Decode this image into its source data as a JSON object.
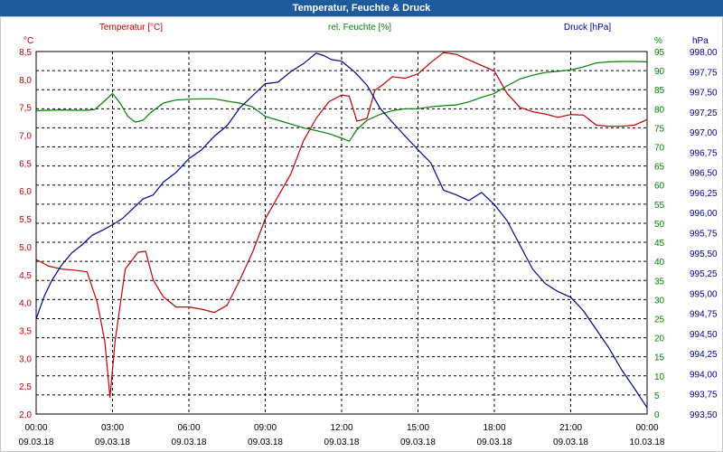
{
  "window": {
    "title": "Temperatur, Feuchte & Druck"
  },
  "colors": {
    "temperature": "#c00000",
    "humidity": "#008000",
    "pressure": "#000099",
    "title_bar": "#1e5b9c",
    "grid": "#000000"
  },
  "chart_data": {
    "type": "line",
    "title": "Temperatur, Feuchte & Druck",
    "grid": true,
    "x": {
      "ticks": [
        {
          "time": "00:00",
          "date": "09.03.18"
        },
        {
          "time": "03:00",
          "date": "09.03.18"
        },
        {
          "time": "06:00",
          "date": "09.03.18"
        },
        {
          "time": "09:00",
          "date": "09.03.18"
        },
        {
          "time": "12:00",
          "date": "09.03.18"
        },
        {
          "time": "15:00",
          "date": "09.03.18"
        },
        {
          "time": "18:00",
          "date": "09.03.18"
        },
        {
          "time": "21:00",
          "date": "09.03.18"
        },
        {
          "time": "00:00",
          "date": "10.03.18"
        }
      ],
      "range_hours": [
        0,
        24
      ]
    },
    "axes": {
      "temperature": {
        "unit": "°C",
        "legend": "Temperatur [°C]",
        "ylim": [
          2.0,
          8.5
        ],
        "ticks": [
          "8,5",
          "8,0",
          "7,5",
          "7,0",
          "6,5",
          "6,0",
          "5,5",
          "5,0",
          "4,5",
          "4,0",
          "3,5",
          "3,0",
          "2,5",
          "2,0"
        ]
      },
      "humidity": {
        "unit": "%",
        "legend": "rel. Feuchte [%]",
        "ylim": [
          0,
          95
        ],
        "ticks": [
          "95",
          "90",
          "85",
          "80",
          "75",
          "70",
          "65",
          "60",
          "55",
          "50",
          "45",
          "40",
          "35",
          "30",
          "25",
          "20",
          "15",
          "10",
          "5",
          "0"
        ]
      },
      "pressure": {
        "unit": "hPa",
        "legend": "Druck [hPa]",
        "ylim": [
          993.5,
          998.0
        ],
        "ticks": [
          "998,00",
          "997,75",
          "997,50",
          "997,25",
          "997,00",
          "996,75",
          "996,50",
          "996,25",
          "996,00",
          "995,75",
          "995,50",
          "995,25",
          "995,00",
          "994,75",
          "994,50",
          "994,25",
          "994,00",
          "993,75",
          "993,50"
        ]
      }
    },
    "series": [
      {
        "name": "Temperatur [°C]",
        "axis": "temperature",
        "points": [
          [
            0,
            4.77
          ],
          [
            0.5,
            4.65
          ],
          [
            1,
            4.6
          ],
          [
            1.5,
            4.58
          ],
          [
            2,
            4.55
          ],
          [
            2.4,
            4.0
          ],
          [
            2.7,
            3.3
          ],
          [
            2.9,
            2.3
          ],
          [
            3.1,
            3.3
          ],
          [
            3.5,
            4.6
          ],
          [
            4,
            4.9
          ],
          [
            4.3,
            4.92
          ],
          [
            4.6,
            4.4
          ],
          [
            5,
            4.1
          ],
          [
            5.5,
            3.92
          ],
          [
            6,
            3.92
          ],
          [
            6.5,
            3.88
          ],
          [
            7,
            3.82
          ],
          [
            7.5,
            3.95
          ],
          [
            8,
            4.4
          ],
          [
            8.5,
            4.9
          ],
          [
            9,
            5.5
          ],
          [
            9.5,
            5.9
          ],
          [
            10,
            6.3
          ],
          [
            10.5,
            6.9
          ],
          [
            11,
            7.3
          ],
          [
            11.5,
            7.6
          ],
          [
            12,
            7.72
          ],
          [
            12.3,
            7.7
          ],
          [
            12.6,
            7.25
          ],
          [
            13,
            7.3
          ],
          [
            13.3,
            7.8
          ],
          [
            13.6,
            7.9
          ],
          [
            14,
            8.05
          ],
          [
            14.5,
            8.02
          ],
          [
            15,
            8.1
          ],
          [
            15.5,
            8.3
          ],
          [
            16,
            8.48
          ],
          [
            16.5,
            8.45
          ],
          [
            17,
            8.35
          ],
          [
            17.5,
            8.25
          ],
          [
            18,
            8.15
          ],
          [
            18.5,
            7.75
          ],
          [
            19,
            7.5
          ],
          [
            19.5,
            7.42
          ],
          [
            20,
            7.38
          ],
          [
            20.5,
            7.32
          ],
          [
            21,
            7.37
          ],
          [
            21.5,
            7.36
          ],
          [
            22,
            7.18
          ],
          [
            22.5,
            7.16
          ],
          [
            23,
            7.16
          ],
          [
            23.5,
            7.18
          ],
          [
            24,
            7.28
          ]
        ]
      },
      {
        "name": "rel. Feuchte [%]",
        "axis": "humidity",
        "points": [
          [
            0,
            79.5
          ],
          [
            0.5,
            79.6
          ],
          [
            1,
            79.7
          ],
          [
            1.5,
            79.6
          ],
          [
            2,
            79.6
          ],
          [
            2.3,
            79.8
          ],
          [
            2.6,
            81.5
          ],
          [
            3,
            84
          ],
          [
            3.3,
            81.5
          ],
          [
            3.6,
            78
          ],
          [
            3.9,
            76.5
          ],
          [
            4.2,
            77
          ],
          [
            4.5,
            79
          ],
          [
            5,
            81.5
          ],
          [
            5.5,
            82.3
          ],
          [
            6,
            82.5
          ],
          [
            6.5,
            82.6
          ],
          [
            7,
            82.6
          ],
          [
            7.5,
            82
          ],
          [
            8,
            81.5
          ],
          [
            8.5,
            80.5
          ],
          [
            9,
            78
          ],
          [
            9.5,
            77
          ],
          [
            10,
            76
          ],
          [
            10.5,
            75
          ],
          [
            11,
            74.3
          ],
          [
            11.5,
            73.5
          ],
          [
            12,
            72.3
          ],
          [
            12.3,
            71.5
          ],
          [
            12.6,
            74.5
          ],
          [
            13,
            77
          ],
          [
            13.5,
            78.5
          ],
          [
            14,
            79.5
          ],
          [
            14.5,
            80
          ],
          [
            15,
            80
          ],
          [
            15.5,
            80.5
          ],
          [
            16,
            80.8
          ],
          [
            16.5,
            81
          ],
          [
            17,
            81.8
          ],
          [
            17.5,
            83
          ],
          [
            18,
            84
          ],
          [
            18.5,
            86
          ],
          [
            19,
            87.8
          ],
          [
            19.5,
            88.8
          ],
          [
            20,
            89.5
          ],
          [
            20.5,
            89.8
          ],
          [
            21,
            90.2
          ],
          [
            21.5,
            91
          ],
          [
            22,
            92
          ],
          [
            22.5,
            92.3
          ],
          [
            23,
            92.4
          ],
          [
            23.5,
            92.4
          ],
          [
            24,
            92.3
          ]
        ]
      },
      {
        "name": "Druck [hPa]",
        "axis": "pressure",
        "points": [
          [
            0,
            994.68
          ],
          [
            0.3,
            994.95
          ],
          [
            0.6,
            995.15
          ],
          [
            1,
            995.35
          ],
          [
            1.4,
            995.5
          ],
          [
            1.8,
            995.6
          ],
          [
            2.2,
            995.72
          ],
          [
            2.6,
            995.78
          ],
          [
            3,
            995.85
          ],
          [
            3.4,
            995.93
          ],
          [
            3.8,
            996.05
          ],
          [
            4.2,
            996.17
          ],
          [
            4.6,
            996.22
          ],
          [
            5,
            996.38
          ],
          [
            5.5,
            996.5
          ],
          [
            6,
            996.67
          ],
          [
            6.5,
            996.78
          ],
          [
            7,
            996.95
          ],
          [
            7.5,
            997.08
          ],
          [
            8,
            997.3
          ],
          [
            8.5,
            997.45
          ],
          [
            9,
            997.6
          ],
          [
            9.5,
            997.62
          ],
          [
            10,
            997.75
          ],
          [
            10.5,
            997.85
          ],
          [
            11,
            997.98
          ],
          [
            11.3,
            997.95
          ],
          [
            11.6,
            997.9
          ],
          [
            12,
            997.88
          ],
          [
            12.5,
            997.75
          ],
          [
            13,
            997.58
          ],
          [
            13.5,
            997.3
          ],
          [
            14,
            997.12
          ],
          [
            14.5,
            996.95
          ],
          [
            15,
            996.78
          ],
          [
            15.5,
            996.62
          ],
          [
            16,
            996.28
          ],
          [
            16.5,
            996.22
          ],
          [
            17,
            996.15
          ],
          [
            17.5,
            996.25
          ],
          [
            18,
            996.1
          ],
          [
            18.5,
            995.9
          ],
          [
            19,
            995.6
          ],
          [
            19.5,
            995.3
          ],
          [
            20,
            995.12
          ],
          [
            20.5,
            995.02
          ],
          [
            21,
            994.95
          ],
          [
            21.5,
            994.78
          ],
          [
            22,
            994.55
          ],
          [
            22.5,
            994.32
          ],
          [
            23,
            994.05
          ],
          [
            23.5,
            993.82
          ],
          [
            24,
            993.58
          ]
        ]
      }
    ]
  }
}
